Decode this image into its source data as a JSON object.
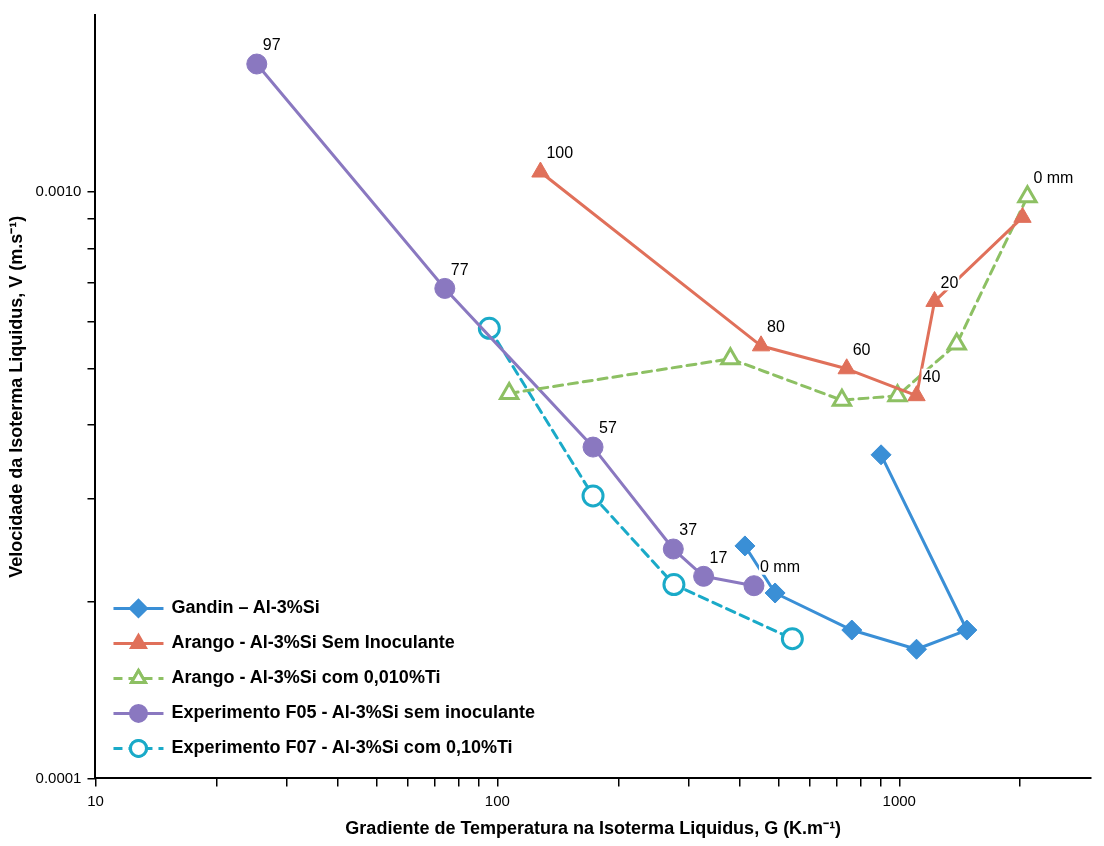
{
  "chart_data": {
    "type": "line",
    "xlabel": "Gradiente de Temperatura na Isoterma Liquidus, G (K.m⁻¹)",
    "ylabel": "Velocidade da Isoterma Liquidus, V (m.s⁻¹)",
    "log": "xy",
    "grid": false,
    "legend": "bottom left",
    "xlim": [
      10,
      3000
    ],
    "ylim": [
      0.0001,
      0.002
    ],
    "xticks": [
      10,
      {
        "value": 20,
        "label": null
      },
      {
        "value": 30,
        "label": null
      },
      {
        "value": 40,
        "label": null
      },
      {
        "value": 50,
        "label": null
      },
      {
        "value": 60,
        "label": null
      },
      {
        "value": 70,
        "label": null
      },
      {
        "value": 80,
        "label": null
      },
      {
        "value": 90,
        "label": null
      },
      100,
      {
        "value": 200,
        "label": null
      },
      {
        "value": 300,
        "label": null
      },
      {
        "value": 400,
        "label": null
      },
      {
        "value": 500,
        "label": null
      },
      {
        "value": 600,
        "label": null
      },
      {
        "value": 700,
        "label": null
      },
      {
        "value": 800,
        "label": null
      },
      {
        "value": 900,
        "label": null
      },
      1000,
      {
        "value": 2000,
        "label": null
      }
    ],
    "yticks": [
      {
        "value": 0.0001,
        "label": "0.0001"
      },
      {
        "value": 0.0002,
        "label": null
      },
      {
        "value": 0.0003,
        "label": null
      },
      {
        "value": 0.0004,
        "label": null
      },
      {
        "value": 0.0005,
        "label": null
      },
      {
        "value": 0.0006,
        "label": null
      },
      {
        "value": 0.0007,
        "label": null
      },
      {
        "value": 0.0008,
        "label": null
      },
      {
        "value": 0.0009,
        "label": null
      },
      {
        "value": 0.001,
        "label": "0.0010"
      }
    ],
    "series": [
      {
        "name": "Gandin – Al-3%Si",
        "color": "#3a8fd6",
        "marker": "diamond",
        "line_style": "solid",
        "x": [
          413,
          491,
          762,
          1104,
          1473,
          901
        ],
        "values": [
          0.000249,
          0.000207,
          0.000179,
          0.000166,
          0.000179,
          0.000356
        ]
      },
      {
        "name": "Arango - Al-3%Si Sem Inoculante",
        "color": "#e0705a",
        "marker": "triangle",
        "line_style": "solid",
        "x": [
          128,
          453,
          740,
          1104,
          1224,
          2026
        ],
        "values": [
          0.00108,
          0.000546,
          0.000499,
          0.000449,
          0.00065,
          0.000904
        ]
      },
      {
        "name": "Arango - Al-3%Si com 0,010%Ti",
        "color": "#8dc063",
        "marker": "triangle",
        "line_style": "dashed",
        "x": [
          107,
          380,
          720,
          990,
          1390,
          2084
        ],
        "values": [
          0.000453,
          0.000519,
          0.000441,
          0.000449,
          0.00055,
          0.00098
        ]
      },
      {
        "name": "Experimento F05 - Al-3%Si sem inoculante",
        "color": "#8a78c0",
        "marker": "circle",
        "line_style": "solid",
        "x": [
          25.2,
          74,
          173,
          274,
          326,
          435
        ],
        "values": [
          0.00165,
          0.000684,
          0.000367,
          0.000246,
          0.000221,
          0.000213
        ]
      },
      {
        "name": "Experimento F07 - Al-3%Si com 0,10%Ti",
        "color": "#1aaac8",
        "marker": "circle",
        "line_style": "dashed",
        "x": [
          95.5,
          173,
          275,
          542
        ],
        "values": [
          0.000585,
          0.000303,
          0.000214,
          0.000173
        ]
      }
    ],
    "annotations": [
      {
        "text": "97",
        "x": 25.2,
        "y": 0.00165
      },
      {
        "text": "77",
        "x": 74,
        "y": 0.000684
      },
      {
        "text": "57",
        "x": 173,
        "y": 0.000367
      },
      {
        "text": "37",
        "x": 274,
        "y": 0.000246
      },
      {
        "text": "17",
        "x": 326,
        "y": 0.000221
      },
      {
        "text": "0 mm",
        "x": 435,
        "y": 0.000213
      },
      {
        "text": "100",
        "x": 128,
        "y": 0.00108
      },
      {
        "text": "80",
        "x": 453,
        "y": 0.000546
      },
      {
        "text": "60",
        "x": 740,
        "y": 0.000499
      },
      {
        "text": "40",
        "x": 1104,
        "y": 0.000449
      },
      {
        "text": "20",
        "x": 1224,
        "y": 0.00065
      },
      {
        "text": "0 mm",
        "x": 2084,
        "y": 0.00098
      }
    ]
  }
}
